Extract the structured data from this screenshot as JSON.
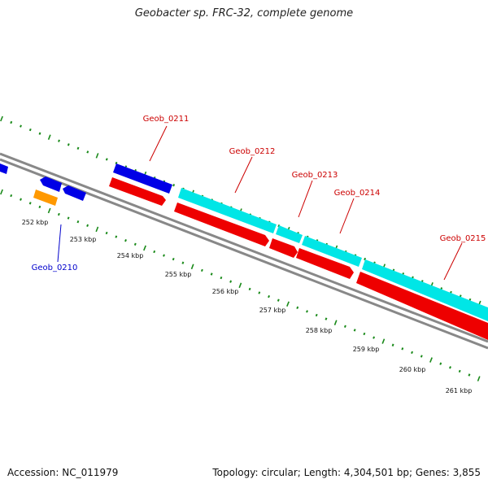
{
  "title": "Geobacter sp. FRC-32, complete genome",
  "footer": {
    "accession": "Accession: NC_011979",
    "summary": "Topology: circular; Length: 4,304,501 bp; Genes: 3,855"
  },
  "colors": {
    "forward_gene": "#0000e6",
    "reverse_gene": "#ee0000",
    "cyan_feature": "#00e6e6",
    "orange_feature": "#ff9900",
    "tick": "#1a8a1a",
    "backbone": "#888888",
    "label_red": "#cc0000",
    "label_blue": "#0000cc"
  },
  "kbp_labels": [
    "252 kbp",
    "253 kbp",
    "254 kbp",
    "255 kbp",
    "256 kbp",
    "257 kbp",
    "258 kbp",
    "259 kbp",
    "260 kbp",
    "261 kbp"
  ],
  "gene_labels": [
    {
      "text": "Geob_0210",
      "color": "blue"
    },
    {
      "text": "Geob_0211",
      "color": "red"
    },
    {
      "text": "Geob_0212",
      "color": "red"
    },
    {
      "text": "Geob_0213",
      "color": "red"
    },
    {
      "text": "Geob_0214",
      "color": "red"
    },
    {
      "text": "Geob_0215",
      "color": "red"
    }
  ]
}
